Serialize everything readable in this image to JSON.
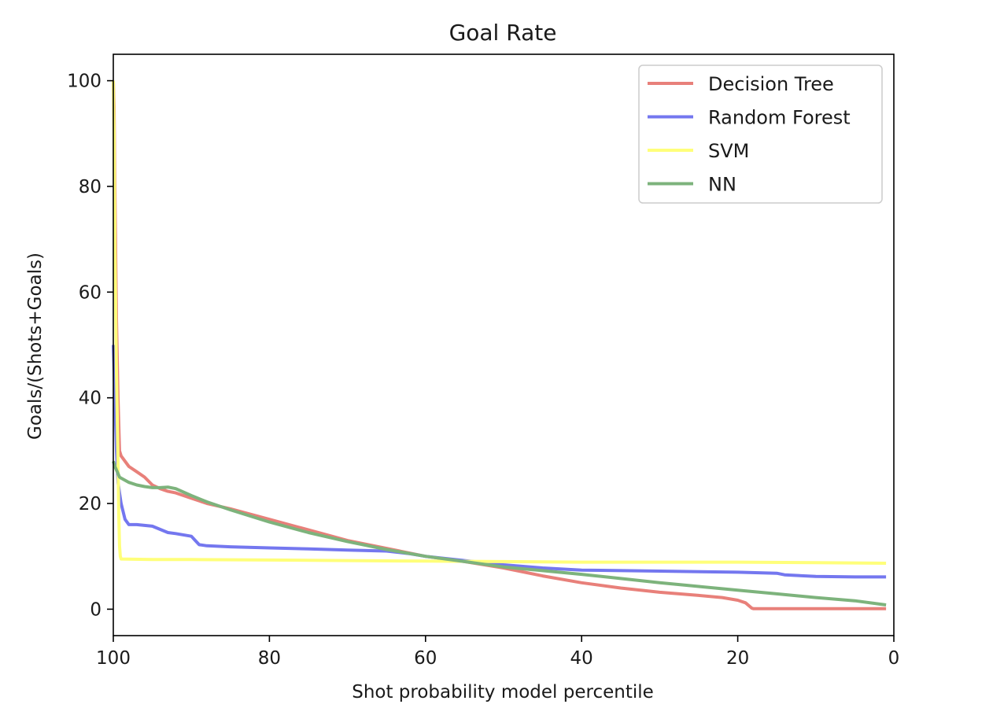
{
  "chart_data": {
    "type": "line",
    "title": "Goal Rate",
    "xlabel": "Shot probability model percentile",
    "ylabel": "Goals/(Shots+Goals)",
    "xlim": [
      100,
      0
    ],
    "ylim": [
      -5,
      105
    ],
    "xticks": [
      100,
      80,
      60,
      40,
      20,
      0
    ],
    "yticks": [
      0,
      20,
      40,
      60,
      80,
      100
    ],
    "grid": false,
    "legend_position": "top-right",
    "series": [
      {
        "name": "Decision Tree",
        "color": "#e8807a",
        "x": [
          100,
          99.9,
          99.8,
          99.6,
          99.4,
          99.2,
          99,
          98,
          97,
          96,
          95,
          94,
          93,
          92,
          90,
          88,
          85,
          80,
          75,
          70,
          65,
          60,
          55,
          50,
          45,
          40,
          35,
          30,
          25,
          22,
          20,
          19,
          18.2,
          18,
          10,
          5,
          1
        ],
        "y": [
          100,
          95,
          80,
          55,
          40,
          30,
          29,
          27,
          26,
          25,
          23.5,
          22.8,
          22.3,
          22,
          21,
          20,
          19,
          17,
          15,
          13,
          11.5,
          10,
          9,
          7.8,
          6.3,
          5,
          4,
          3.2,
          2.6,
          2.2,
          1.7,
          1.2,
          0.2,
          0.1,
          0.1,
          0.1,
          0.1
        ]
      },
      {
        "name": "Random Forest",
        "color": "#7477ef",
        "x": [
          100,
          99.8,
          99.6,
          99.4,
          99.2,
          99,
          98.5,
          98,
          97,
          95,
          93,
          92,
          90,
          89.5,
          89,
          88,
          85,
          80,
          75,
          70,
          65,
          62,
          60,
          55,
          50,
          45,
          40,
          30,
          20,
          15,
          14,
          10,
          5,
          1
        ],
        "y": [
          50,
          40,
          30,
          24,
          22,
          20,
          17,
          16,
          16,
          15.7,
          14.5,
          14.3,
          13.8,
          13,
          12.2,
          12,
          11.8,
          11.6,
          11.4,
          11.2,
          11,
          10.5,
          10,
          9.2,
          8.4,
          7.8,
          7.4,
          7.2,
          7,
          6.8,
          6.5,
          6.2,
          6.1,
          6.1
        ]
      },
      {
        "name": "SVM",
        "color": "#ffff7a",
        "x": [
          100,
          99.9,
          99.8,
          99.6,
          99.4,
          99.3,
          99.2,
          99.1,
          99,
          95,
          90,
          80,
          70,
          60,
          50,
          40,
          30,
          20,
          10,
          1
        ],
        "y": [
          100,
          90,
          70,
          45,
          28,
          18,
          12,
          10,
          9.5,
          9.4,
          9.4,
          9.3,
          9.2,
          9.1,
          9,
          8.9,
          8.9,
          8.9,
          8.8,
          8.7
        ]
      },
      {
        "name": "NN",
        "color": "#7db37c",
        "x": [
          100,
          99.8,
          99.5,
          99.2,
          99,
          98,
          97,
          96,
          95,
          94,
          93,
          92,
          90,
          88,
          85,
          80,
          75,
          70,
          65,
          60,
          55,
          50,
          45,
          40,
          35,
          30,
          25,
          20,
          15,
          10,
          5,
          1
        ],
        "y": [
          28,
          27,
          26,
          25,
          24.8,
          24,
          23.5,
          23.2,
          23,
          23,
          23.1,
          22.8,
          21.5,
          20.3,
          18.8,
          16.5,
          14.5,
          12.8,
          11.3,
          10,
          9,
          8,
          7.3,
          6.6,
          5.8,
          5,
          4.3,
          3.6,
          2.9,
          2.2,
          1.6,
          0.8
        ]
      }
    ]
  }
}
